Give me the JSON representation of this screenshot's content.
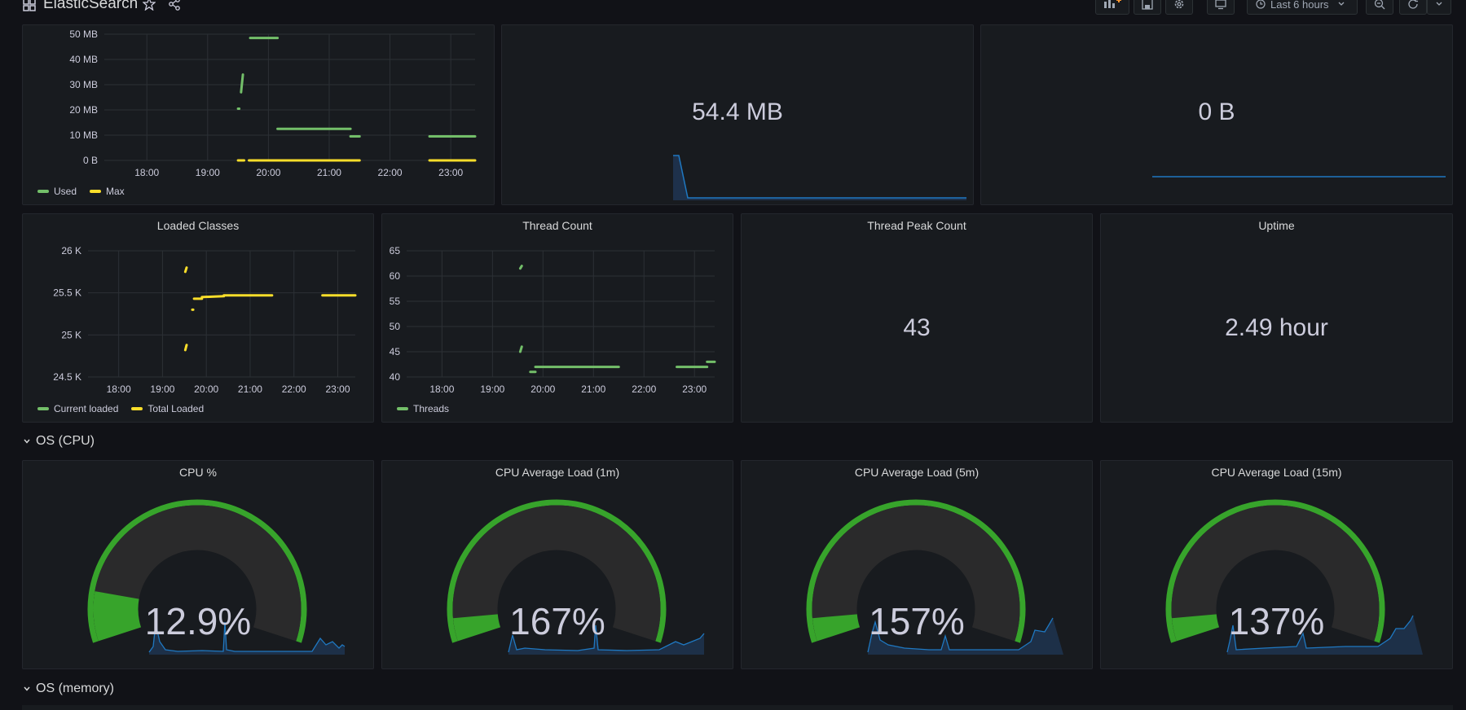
{
  "dashboard": {
    "title": "ElasticSearch",
    "time_range": "Last 6 hours"
  },
  "heap_chart": {
    "chart_data": {
      "type": "line",
      "y_ticks": [
        "50 MB",
        "40 MB",
        "30 MB",
        "20 MB",
        "10 MB",
        "0 B"
      ],
      "x_ticks": [
        "18:00",
        "19:00",
        "20:00",
        "21:00",
        "22:00",
        "23:00"
      ],
      "series": [
        {
          "name": "Used",
          "color": "#73bf69",
          "segments": [
            [
              [
                19.5,
                20.5
              ],
              [
                19.52,
                20.5
              ]
            ],
            [
              [
                19.55,
                27
              ],
              [
                19.58,
                34
              ]
            ],
            [
              [
                19.7,
                48.5
              ],
              [
                20.15,
                48.5
              ]
            ],
            [
              [
                20.15,
                12.5
              ],
              [
                21.35,
                12.5
              ]
            ],
            [
              [
                21.35,
                9.5
              ],
              [
                21.5,
                9.5
              ]
            ],
            [
              [
                22.65,
                9.5
              ],
              [
                23.4,
                9.5
              ]
            ]
          ]
        },
        {
          "name": "Max",
          "color": "#fade2a",
          "segments": [
            [
              [
                19.5,
                0
              ],
              [
                19.6,
                0
              ]
            ],
            [
              [
                19.68,
                0
              ],
              [
                21.5,
                0
              ]
            ],
            [
              [
                22.65,
                0
              ],
              [
                23.4,
                0
              ]
            ]
          ]
        }
      ],
      "ylim": [
        0,
        50
      ],
      "xlim": [
        17.3,
        23.4
      ]
    },
    "legend": [
      "Used",
      "Max"
    ]
  },
  "stat_heap": {
    "value": "54.4 MB"
  },
  "stat_zero": {
    "value": "0 B"
  },
  "loaded_classes": {
    "title": "Loaded Classes",
    "chart_data": {
      "type": "line",
      "y_ticks": [
        "26 K",
        "25.5 K",
        "25 K",
        "24.5 K"
      ],
      "x_ticks": [
        "18:00",
        "19:00",
        "20:00",
        "21:00",
        "22:00",
        "23:00"
      ],
      "series": [
        {
          "name": "Current loaded",
          "color": "#73bf69",
          "segments": []
        },
        {
          "name": "Total Loaded",
          "color": "#fade2a",
          "segments": [
            [
              [
                19.52,
                25750
              ],
              [
                19.55,
                25800
              ]
            ],
            [
              [
                19.52,
                24820
              ],
              [
                19.55,
                24880
              ]
            ],
            [
              [
                19.68,
                25300
              ],
              [
                19.7,
                25300
              ]
            ],
            [
              [
                19.72,
                25430
              ],
              [
                19.9,
                25430
              ]
            ],
            [
              [
                19.9,
                25450
              ],
              [
                20.4,
                25460
              ]
            ],
            [
              [
                20.4,
                25470
              ],
              [
                21.5,
                25470
              ]
            ],
            [
              [
                22.65,
                25470
              ],
              [
                23.4,
                25470
              ]
            ]
          ]
        }
      ],
      "ylim": [
        24500,
        26000
      ],
      "xlim": [
        17.3,
        23.4
      ]
    },
    "legend": [
      "Current loaded",
      "Total Loaded"
    ]
  },
  "thread_count": {
    "title": "Thread Count",
    "chart_data": {
      "type": "line",
      "y_ticks": [
        "65",
        "60",
        "55",
        "50",
        "45",
        "40"
      ],
      "x_ticks": [
        "18:00",
        "19:00",
        "20:00",
        "21:00",
        "22:00",
        "23:00"
      ],
      "series": [
        {
          "name": "Threads",
          "color": "#73bf69",
          "segments": [
            [
              [
                19.55,
                61.5
              ],
              [
                19.58,
                62
              ]
            ],
            [
              [
                19.55,
                45
              ],
              [
                19.58,
                46
              ]
            ],
            [
              [
                19.75,
                41
              ],
              [
                19.85,
                41
              ]
            ],
            [
              [
                19.85,
                42
              ],
              [
                21.5,
                42
              ]
            ],
            [
              [
                22.65,
                42
              ],
              [
                23.25,
                42
              ]
            ],
            [
              [
                23.25,
                43
              ],
              [
                23.4,
                43
              ]
            ]
          ]
        }
      ],
      "ylim": [
        40,
        65
      ],
      "xlim": [
        17.3,
        23.4
      ]
    },
    "legend": [
      "Threads"
    ]
  },
  "thread_peak": {
    "title": "Thread Peak Count",
    "value": "43"
  },
  "uptime": {
    "title": "Uptime",
    "value": "2.49 hour"
  },
  "rows": {
    "cpu": "OS (CPU)",
    "memory": "OS (memory)"
  },
  "gauges": [
    {
      "title": "CPU %",
      "value": "12.9%",
      "fraction": 0.129
    },
    {
      "title": "CPU Average Load (1m)",
      "value": "167%",
      "fraction": 0.06
    },
    {
      "title": "CPU Average Load (5m)",
      "value": "157%",
      "fraction": 0.06
    },
    {
      "title": "CPU Average Load (15m)",
      "value": "137%",
      "fraction": 0.06
    }
  ],
  "colors": {
    "green": "#73bf69",
    "yellow": "#fade2a",
    "gauge_green": "#37a42b",
    "blue": "#1f78c1"
  }
}
